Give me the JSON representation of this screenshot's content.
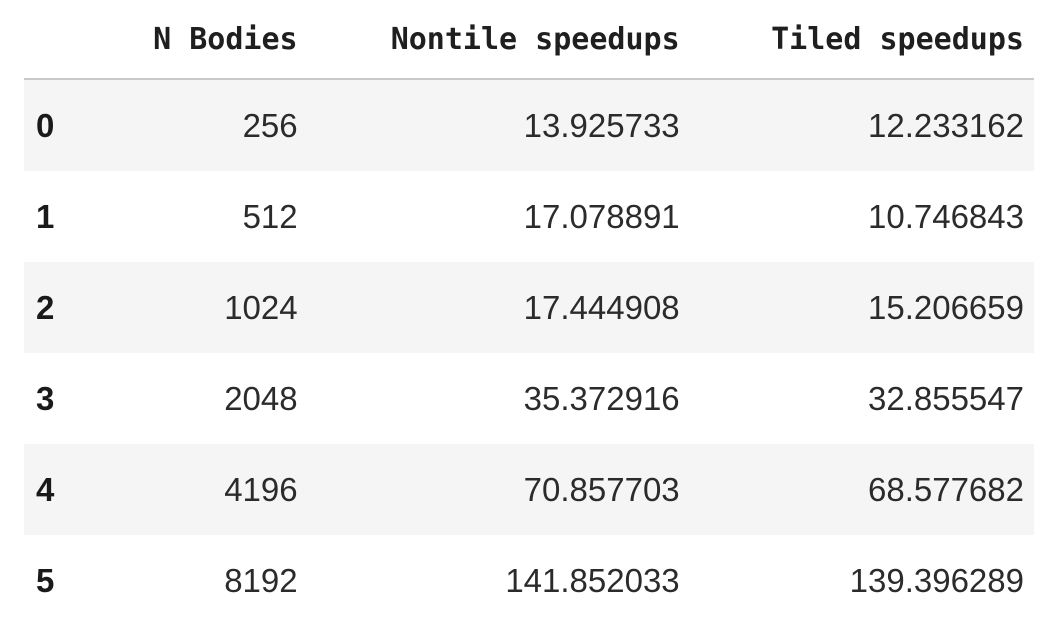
{
  "table": {
    "index_header": "",
    "columns": [
      "N Bodies",
      "Nontile speedups",
      "Tiled speedups"
    ],
    "rows": [
      {
        "index": "0",
        "n_bodies": "256",
        "nontile": "13.925733",
        "tiled": "12.233162"
      },
      {
        "index": "1",
        "n_bodies": "512",
        "nontile": "17.078891",
        "tiled": "10.746843"
      },
      {
        "index": "2",
        "n_bodies": "1024",
        "nontile": "17.444908",
        "tiled": "15.206659"
      },
      {
        "index": "3",
        "n_bodies": "2048",
        "nontile": "35.372916",
        "tiled": "32.855547"
      },
      {
        "index": "4",
        "n_bodies": "4196",
        "nontile": "70.857703",
        "tiled": "68.577682"
      },
      {
        "index": "5",
        "n_bodies": "8192",
        "nontile": "141.852033",
        "tiled": "139.396289"
      }
    ]
  },
  "colors": {
    "header_border": "#c9c9c9",
    "stripe": "#f5f5f5",
    "text": "#1a1a1a"
  }
}
